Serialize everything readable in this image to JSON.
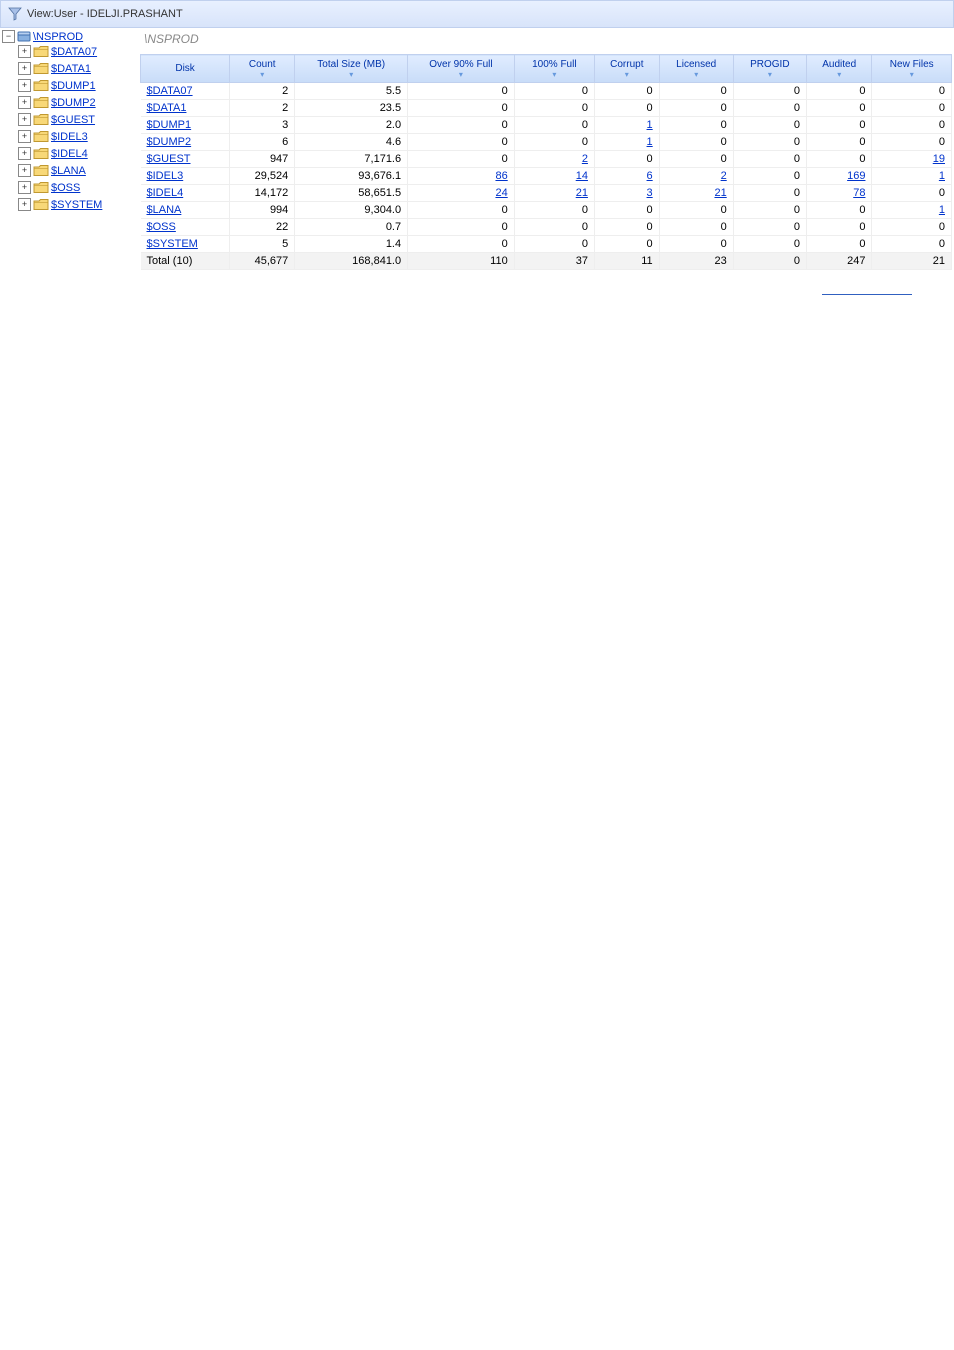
{
  "header": {
    "label": "View:User - IDELJI.PRASHANT"
  },
  "tree": {
    "root": {
      "label": "\\NSPROD"
    },
    "children": [
      {
        "label": "$DATA07"
      },
      {
        "label": "$DATA1"
      },
      {
        "label": "$DUMP1"
      },
      {
        "label": "$DUMP2"
      },
      {
        "label": "$GUEST"
      },
      {
        "label": "$IDEL3"
      },
      {
        "label": "$IDEL4"
      },
      {
        "label": "$LANA"
      },
      {
        "label": "$OSS"
      },
      {
        "label": "$SYSTEM"
      }
    ]
  },
  "main": {
    "title": "\\NSPROD",
    "columns": [
      "Disk",
      "Count",
      "Total Size (MB)",
      "Over 90% Full",
      "100% Full",
      "Corrupt",
      "Licensed",
      "PROGID",
      "Audited",
      "New Files"
    ],
    "rows": [
      {
        "disk": "$DATA07",
        "count": "2",
        "size": "5.5",
        "over90": "0",
        "full": "0",
        "corrupt": "0",
        "licensed": "0",
        "progid": "0",
        "audited": "0",
        "newfiles": "0",
        "links": {}
      },
      {
        "disk": "$DATA1",
        "count": "2",
        "size": "23.5",
        "over90": "0",
        "full": "0",
        "corrupt": "0",
        "licensed": "0",
        "progid": "0",
        "audited": "0",
        "newfiles": "0",
        "links": {}
      },
      {
        "disk": "$DUMP1",
        "count": "3",
        "size": "2.0",
        "over90": "0",
        "full": "0",
        "corrupt": "1",
        "licensed": "0",
        "progid": "0",
        "audited": "0",
        "newfiles": "0",
        "links": {
          "corrupt": true
        }
      },
      {
        "disk": "$DUMP2",
        "count": "6",
        "size": "4.6",
        "over90": "0",
        "full": "0",
        "corrupt": "1",
        "licensed": "0",
        "progid": "0",
        "audited": "0",
        "newfiles": "0",
        "links": {
          "corrupt": true
        }
      },
      {
        "disk": "$GUEST",
        "count": "947",
        "size": "7,171.6",
        "over90": "0",
        "full": "2",
        "corrupt": "0",
        "licensed": "0",
        "progid": "0",
        "audited": "0",
        "newfiles": "19",
        "links": {
          "full": true,
          "newfiles": true
        }
      },
      {
        "disk": "$IDEL3",
        "count": "29,524",
        "size": "93,676.1",
        "over90": "86",
        "full": "14",
        "corrupt": "6",
        "licensed": "2",
        "progid": "0",
        "audited": "169",
        "newfiles": "1",
        "links": {
          "over90": true,
          "full": true,
          "corrupt": true,
          "licensed": true,
          "audited": true,
          "newfiles": true
        }
      },
      {
        "disk": "$IDEL4",
        "count": "14,172",
        "size": "58,651.5",
        "over90": "24",
        "full": "21",
        "corrupt": "3",
        "licensed": "21",
        "progid": "0",
        "audited": "78",
        "newfiles": "0",
        "links": {
          "over90": true,
          "full": true,
          "corrupt": true,
          "licensed": true,
          "audited": true
        }
      },
      {
        "disk": "$LANA",
        "count": "994",
        "size": "9,304.0",
        "over90": "0",
        "full": "0",
        "corrupt": "0",
        "licensed": "0",
        "progid": "0",
        "audited": "0",
        "newfiles": "1",
        "links": {
          "newfiles": true
        }
      },
      {
        "disk": "$OSS",
        "count": "22",
        "size": "0.7",
        "over90": "0",
        "full": "0",
        "corrupt": "0",
        "licensed": "0",
        "progid": "0",
        "audited": "0",
        "newfiles": "0",
        "links": {}
      },
      {
        "disk": "$SYSTEM",
        "count": "5",
        "size": "1.4",
        "over90": "0",
        "full": "0",
        "corrupt": "0",
        "licensed": "0",
        "progid": "0",
        "audited": "0",
        "newfiles": "0",
        "links": {}
      }
    ],
    "total": {
      "label": "Total (10)",
      "count": "45,677",
      "size": "168,841.0",
      "over90": "110",
      "full": "37",
      "corrupt": "11",
      "licensed": "23",
      "progid": "0",
      "audited": "247",
      "newfiles": "21"
    }
  },
  "style": {
    "header_bg_top": "#e8f0ff",
    "header_bg_bot": "#d8e4fa",
    "th_bg_top": "#e0ecff",
    "th_bg_bot": "#c8dcf8",
    "th_color": "#0033aa",
    "link_color": "#0033cc",
    "border": "#c0d0ee",
    "total_bg": "#f3f3f3",
    "title_color": "#888888"
  }
}
